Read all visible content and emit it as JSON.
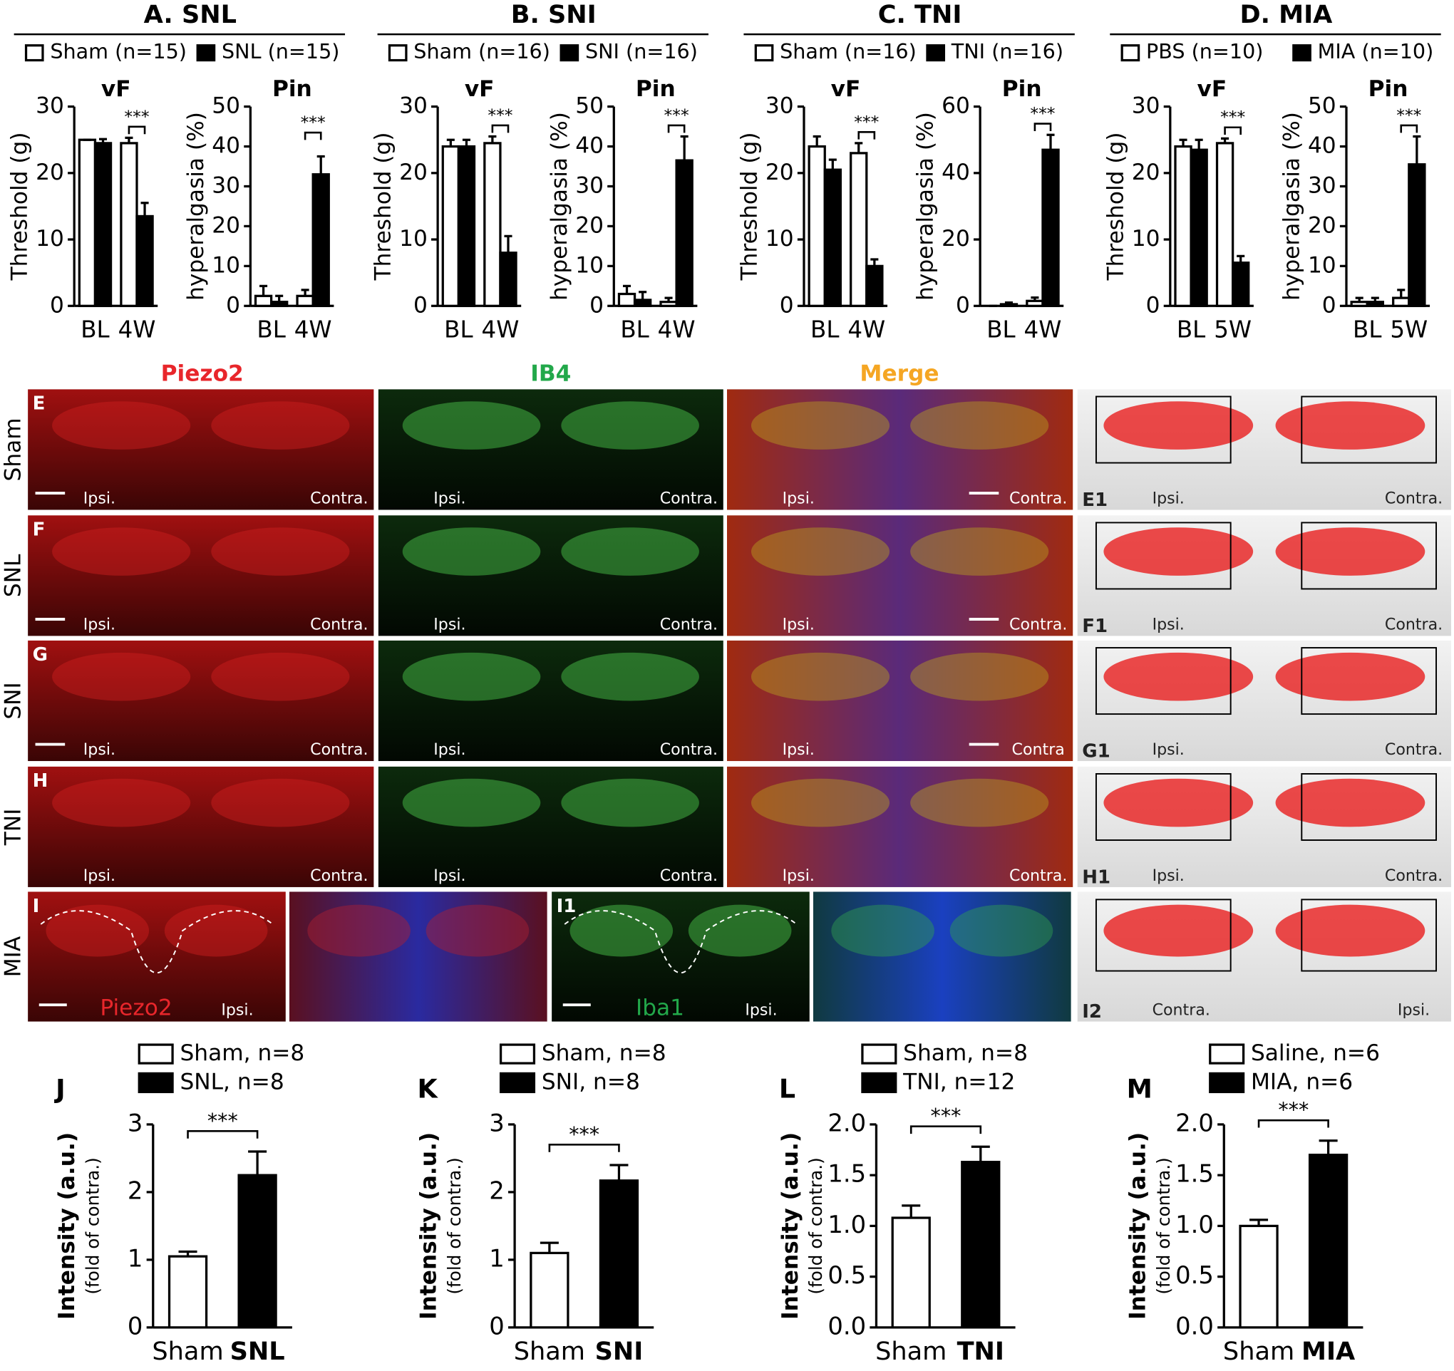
{
  "chart_data": [
    {
      "type": "bar",
      "group_title": "A. SNL",
      "subtitle": "vF",
      "ylabel": "Threshold (g)",
      "categories": [
        "BL",
        "4W"
      ],
      "ylim": [
        0,
        30
      ],
      "yticks": [
        0,
        10,
        20,
        30
      ],
      "series": [
        {
          "name": "Sham (n=15)",
          "color": "#ffffff",
          "values": [
            25,
            24.5
          ],
          "errors": [
            0,
            0.8
          ]
        },
        {
          "name": "SNL (n=15)",
          "color": "#000000",
          "values": [
            24.5,
            13.5
          ],
          "errors": [
            0.6,
            2
          ]
        }
      ],
      "significance": "***"
    },
    {
      "type": "bar",
      "subtitle": "Pin",
      "ylabel": "hyperalgasia (%)",
      "categories": [
        "BL",
        "4W"
      ],
      "ylim": [
        0,
        50
      ],
      "yticks": [
        0,
        10,
        20,
        30,
        40,
        50
      ],
      "series": [
        {
          "color": "#ffffff",
          "values": [
            2.5,
            2.5
          ],
          "errors": [
            2.5,
            1.5
          ]
        },
        {
          "color": "#000000",
          "values": [
            1,
            33
          ],
          "errors": [
            1.5,
            4.5
          ]
        }
      ],
      "significance": "***"
    },
    {
      "type": "bar",
      "group_title": "B. SNI",
      "subtitle": "vF",
      "ylabel": "Threshold (g)",
      "categories": [
        "BL",
        "4W"
      ],
      "ylim": [
        0,
        30
      ],
      "yticks": [
        0,
        10,
        20,
        30
      ],
      "series": [
        {
          "name": "Sham (n=16)",
          "color": "#ffffff",
          "values": [
            24,
            24.5
          ],
          "errors": [
            1,
            1
          ]
        },
        {
          "name": "SNI (n=16)",
          "color": "#000000",
          "values": [
            24,
            8
          ],
          "errors": [
            1,
            2.5
          ]
        }
      ],
      "significance": "***"
    },
    {
      "type": "bar",
      "subtitle": "Pin",
      "ylabel": "hyperalgasia (%)",
      "categories": [
        "BL",
        "4W"
      ],
      "ylim": [
        0,
        50
      ],
      "yticks": [
        0,
        10,
        20,
        30,
        40,
        50
      ],
      "series": [
        {
          "color": "#ffffff",
          "values": [
            3,
            1
          ],
          "errors": [
            2,
            1
          ]
        },
        {
          "color": "#000000",
          "values": [
            1.5,
            36.5
          ],
          "errors": [
            2,
            6
          ]
        }
      ],
      "significance": "***"
    },
    {
      "type": "bar",
      "group_title": "C. TNI",
      "subtitle": "vF",
      "ylabel": "Threshold (g)",
      "categories": [
        "BL",
        "4W"
      ],
      "ylim": [
        0,
        30
      ],
      "yticks": [
        0,
        10,
        20,
        30
      ],
      "series": [
        {
          "name": "Sham (n=16)",
          "color": "#ffffff",
          "values": [
            24,
            23
          ],
          "errors": [
            1.5,
            1.5
          ]
        },
        {
          "name": "TNI (n=16)",
          "color": "#000000",
          "values": [
            20.5,
            6
          ],
          "errors": [
            1.5,
            1
          ]
        }
      ],
      "significance": "***"
    },
    {
      "type": "bar",
      "subtitle": "Pin",
      "ylabel": "hyperalgasia (%)",
      "categories": [
        "BL",
        "4W"
      ],
      "ylim": [
        0,
        60
      ],
      "yticks": [
        0,
        20,
        40,
        60
      ],
      "series": [
        {
          "color": "#ffffff",
          "values": [
            0,
            1.5
          ],
          "errors": [
            0,
            1
          ]
        },
        {
          "color": "#000000",
          "values": [
            0.5,
            47
          ],
          "errors": [
            0.5,
            4.5
          ]
        }
      ],
      "significance": "***"
    },
    {
      "type": "bar",
      "group_title": "D. MIA",
      "subtitle": "vF",
      "ylabel": "Threshold (g)",
      "categories": [
        "BL",
        "5W"
      ],
      "ylim": [
        0,
        30
      ],
      "yticks": [
        0,
        10,
        20,
        30
      ],
      "series": [
        {
          "name": "PBS (n=10)",
          "color": "#ffffff",
          "values": [
            24,
            24.5
          ],
          "errors": [
            1,
            0.7
          ]
        },
        {
          "name": "MIA (n=10)",
          "color": "#000000",
          "values": [
            23.5,
            6.5
          ],
          "errors": [
            1.5,
            1
          ]
        }
      ],
      "significance": "***"
    },
    {
      "type": "bar",
      "subtitle": "Pin",
      "ylabel": "hyperalgasia (%)",
      "categories": [
        "BL",
        "5W"
      ],
      "ylim": [
        0,
        50
      ],
      "yticks": [
        0,
        10,
        20,
        30,
        40,
        50
      ],
      "series": [
        {
          "color": "#ffffff",
          "values": [
            1,
            2
          ],
          "errors": [
            1,
            2
          ]
        },
        {
          "color": "#000000",
          "values": [
            1,
            35.5
          ],
          "errors": [
            1,
            7
          ]
        }
      ],
      "significance": "***"
    },
    {
      "type": "bar",
      "panel": "J",
      "ylabel": "Intensity (a.u.)",
      "ylabel_sub": "(fold of contra.)",
      "categories": [
        "Sham",
        "SNL"
      ],
      "ylim": [
        0,
        3
      ],
      "yticks": [
        0,
        1,
        2,
        3
      ],
      "series": [
        {
          "name": "Sham, n=8",
          "color": "#ffffff",
          "values": [
            1.05,
            null
          ],
          "errors": [
            0.07,
            null
          ]
        },
        {
          "name": "SNL, n=8",
          "color": "#000000",
          "values": [
            null,
            2.25
          ],
          "errors": [
            null,
            0.35
          ]
        }
      ],
      "significance": "***"
    },
    {
      "type": "bar",
      "panel": "K",
      "ylabel": "Intensity (a.u.)",
      "ylabel_sub": "(fold of contra.)",
      "categories": [
        "Sham",
        "SNI"
      ],
      "ylim": [
        0,
        3
      ],
      "yticks": [
        0,
        1,
        2,
        3
      ],
      "series": [
        {
          "name": "Sham, n=8",
          "color": "#ffffff",
          "values": [
            1.1,
            null
          ],
          "errors": [
            0.15,
            null
          ]
        },
        {
          "name": "SNI, n=8",
          "color": "#000000",
          "values": [
            null,
            2.17
          ],
          "errors": [
            null,
            0.23
          ]
        }
      ],
      "significance": "***"
    },
    {
      "type": "bar",
      "panel": "L",
      "ylabel": "Intensity (a.u.)",
      "ylabel_sub": "(fold of contra.)",
      "categories": [
        "Sham",
        "TNI"
      ],
      "ylim": [
        0,
        2
      ],
      "yticks": [
        {
          "value": 0,
          "label": "0.0"
        },
        0.5,
        {
          "value": 1,
          "label": "1.0"
        },
        1.5,
        {
          "value": 2,
          "label": "2.0"
        }
      ],
      "series": [
        {
          "name": "Sham, n=8",
          "color": "#ffffff",
          "values": [
            1.08,
            null
          ],
          "errors": [
            0.12,
            null
          ]
        },
        {
          "name": "TNI, n=12",
          "color": "#000000",
          "values": [
            null,
            1.63
          ],
          "errors": [
            null,
            0.15
          ]
        }
      ],
      "significance": "***"
    },
    {
      "type": "bar",
      "panel": "M",
      "ylabel": "Intensity (a.u.)",
      "ylabel_sub": "(fold of contra.)",
      "categories": [
        "Sham",
        "MIA"
      ],
      "ylim": [
        0,
        2
      ],
      "yticks": [
        {
          "value": 0,
          "label": "0.0"
        },
        0.5,
        {
          "value": 1,
          "label": "1.0"
        },
        1.5,
        {
          "value": 2,
          "label": "2.0"
        }
      ],
      "series": [
        {
          "name": "Saline, n=6",
          "color": "#ffffff",
          "values": [
            1.0,
            null
          ],
          "errors": [
            0.06,
            null
          ]
        },
        {
          "name": "MIA, n=6",
          "color": "#000000",
          "values": [
            null,
            1.7
          ],
          "errors": [
            null,
            0.14
          ]
        }
      ],
      "significance": "***"
    }
  ],
  "images": {
    "columns": [
      "Piezo2",
      "IB4",
      "Merge"
    ],
    "rows": [
      {
        "label": "Sham",
        "panels": [
          {
            "letter": "E",
            "left": "Ipsi.",
            "right": "Contra."
          },
          {
            "left": "Ipsi.",
            "right": "Contra."
          },
          {
            "left": "Ipsi.",
            "right": "Contra."
          },
          {
            "letter": "E1",
            "left": "Ipsi.",
            "right": "Contra."
          }
        ]
      },
      {
        "label": "SNL",
        "panels": [
          {
            "letter": "F",
            "left": "Ipsi.",
            "right": "Contra."
          },
          {
            "left": "Ipsi.",
            "right": "Contra."
          },
          {
            "left": "Ipsi.",
            "right": "Contra."
          },
          {
            "letter": "F1",
            "left": "Ipsi.",
            "right": "Contra."
          }
        ]
      },
      {
        "label": "SNI",
        "panels": [
          {
            "letter": "G",
            "left": "Ipsi.",
            "right": "Contra."
          },
          {
            "left": "Ipsi.",
            "right": "Contra."
          },
          {
            "left": "Ipsi.",
            "right": "Contra"
          },
          {
            "letter": "G1",
            "left": "Ipsi.",
            "right": "Contra."
          }
        ]
      },
      {
        "label": "TNI",
        "panels": [
          {
            "letter": "H",
            "left": "Ipsi.",
            "right": "Contra."
          },
          {
            "left": "Ipsi.",
            "right": "Contra."
          },
          {
            "left": "Ipsi.",
            "right": "Contra."
          },
          {
            "letter": "H1",
            "left": "Ipsi.",
            "right": "Contra."
          }
        ]
      },
      {
        "label": "MIA",
        "panels": [
          {
            "letter": "I",
            "stain": "Piezo2",
            "right": "Ipsi."
          },
          {},
          {
            "letter": "I1",
            "stain": "Iba1",
            "right": "Ipsi."
          },
          {},
          {
            "letter": "I2",
            "left": "Contra.",
            "right": "Ipsi."
          }
        ]
      }
    ]
  }
}
